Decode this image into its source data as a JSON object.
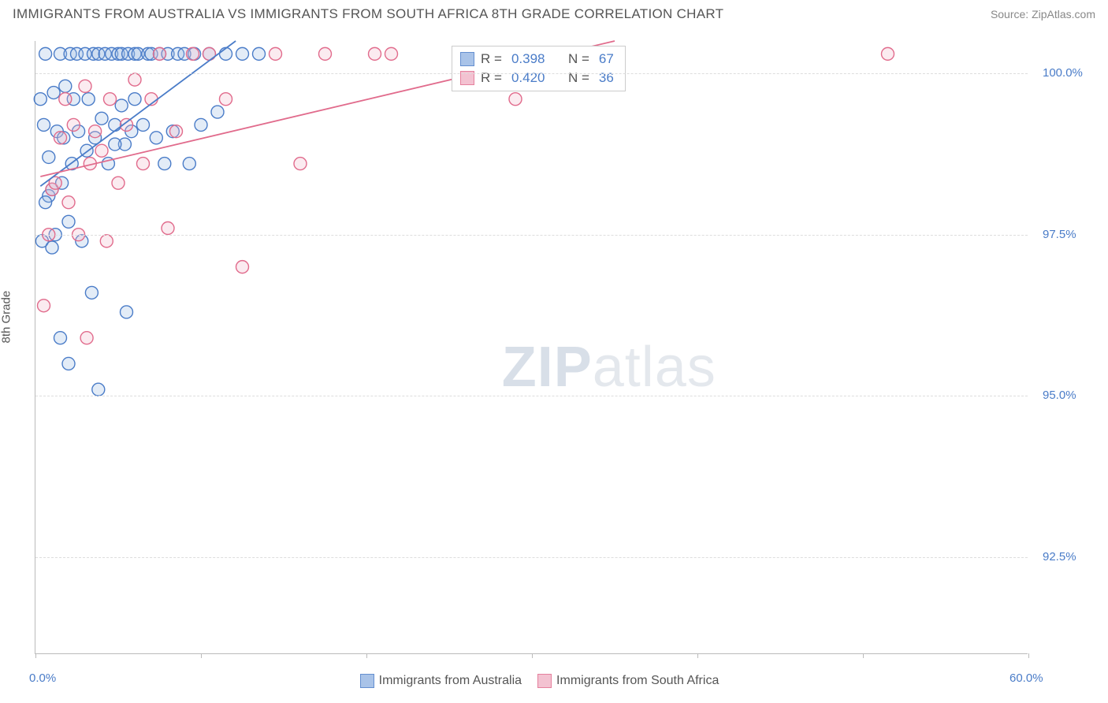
{
  "header": {
    "title": "IMMIGRANTS FROM AUSTRALIA VS IMMIGRANTS FROM SOUTH AFRICA 8TH GRADE CORRELATION CHART",
    "source_prefix": "Source: ",
    "source_name": "ZipAtlas.com"
  },
  "chart": {
    "type": "scatter",
    "y_axis_label": "8th Grade",
    "xlim": [
      0,
      60
    ],
    "ylim": [
      91,
      100.5
    ],
    "x_ticks": [
      0,
      10,
      20,
      30,
      40,
      50,
      60
    ],
    "x_tick_labels": {
      "0": "0.0%",
      "60": "60.0%"
    },
    "y_ticks": [
      92.5,
      95.0,
      97.5,
      100.0
    ],
    "y_tick_labels": [
      "92.5%",
      "95.0%",
      "97.5%",
      "100.0%"
    ],
    "background_color": "#ffffff",
    "grid_color": "#dddddd",
    "axis_color": "#bbbbbb",
    "tick_label_color": "#4a7cc8",
    "marker_radius": 8,
    "marker_fill_opacity": 0.28,
    "marker_stroke_width": 1.4,
    "line_width": 1.8,
    "watermark_text_bold": "ZIP",
    "watermark_text_light": "atlas",
    "series": [
      {
        "name": "Immigrants from Australia",
        "color_stroke": "#4a7cc8",
        "color_fill": "#9bb9e4",
        "R": "0.398",
        "N": "67",
        "trend": {
          "x1": 0.3,
          "y1": 98.25,
          "x2": 12.1,
          "y2": 100.5
        },
        "points": [
          [
            0.3,
            99.6
          ],
          [
            0.5,
            99.2
          ],
          [
            0.6,
            100.3
          ],
          [
            0.8,
            98.1
          ],
          [
            1.0,
            98.2
          ],
          [
            1.1,
            99.7
          ],
          [
            1.2,
            97.5
          ],
          [
            1.3,
            99.1
          ],
          [
            1.5,
            100.3
          ],
          [
            1.6,
            98.3
          ],
          [
            1.7,
            99.0
          ],
          [
            1.8,
            99.8
          ],
          [
            2.0,
            97.7
          ],
          [
            2.1,
            100.3
          ],
          [
            2.2,
            98.6
          ],
          [
            2.3,
            99.6
          ],
          [
            2.5,
            100.3
          ],
          [
            2.6,
            99.1
          ],
          [
            2.8,
            97.4
          ],
          [
            3.0,
            100.3
          ],
          [
            3.1,
            98.8
          ],
          [
            3.2,
            99.6
          ],
          [
            3.4,
            96.6
          ],
          [
            3.5,
            100.3
          ],
          [
            3.6,
            99.0
          ],
          [
            3.8,
            100.3
          ],
          [
            4.0,
            99.3
          ],
          [
            4.2,
            100.3
          ],
          [
            4.4,
            98.6
          ],
          [
            4.6,
            100.3
          ],
          [
            4.8,
            99.2
          ],
          [
            5.0,
            100.3
          ],
          [
            5.2,
            100.3
          ],
          [
            5.4,
            98.9
          ],
          [
            5.6,
            100.3
          ],
          [
            5.8,
            99.1
          ],
          [
            6.0,
            100.3
          ],
          [
            6.2,
            100.3
          ],
          [
            6.5,
            99.2
          ],
          [
            6.8,
            100.3
          ],
          [
            7.0,
            100.3
          ],
          [
            7.3,
            99.0
          ],
          [
            7.5,
            100.3
          ],
          [
            7.8,
            98.6
          ],
          [
            8.0,
            100.3
          ],
          [
            8.3,
            99.1
          ],
          [
            8.6,
            100.3
          ],
          [
            9.0,
            100.3
          ],
          [
            9.3,
            98.6
          ],
          [
            9.6,
            100.3
          ],
          [
            10.0,
            99.2
          ],
          [
            10.5,
            100.3
          ],
          [
            11.0,
            99.4
          ],
          [
            11.5,
            100.3
          ],
          [
            12.5,
            100.3
          ],
          [
            13.5,
            100.3
          ],
          [
            2.0,
            95.5
          ],
          [
            3.8,
            95.1
          ],
          [
            5.5,
            96.3
          ],
          [
            1.5,
            95.9
          ],
          [
            0.4,
            97.4
          ],
          [
            0.8,
            98.7
          ],
          [
            1.0,
            97.3
          ],
          [
            0.6,
            98.0
          ],
          [
            4.8,
            98.9
          ],
          [
            5.2,
            99.5
          ],
          [
            6.0,
            99.6
          ]
        ]
      },
      {
        "name": "Immigrants from South Africa",
        "color_stroke": "#e16b8c",
        "color_fill": "#f2b8c9",
        "R": "0.420",
        "N": "36",
        "trend": {
          "x1": 0.3,
          "y1": 98.4,
          "x2": 35.0,
          "y2": 100.5
        },
        "points": [
          [
            0.5,
            96.4
          ],
          [
            0.8,
            97.5
          ],
          [
            1.0,
            98.2
          ],
          [
            1.2,
            98.3
          ],
          [
            1.5,
            99.0
          ],
          [
            1.8,
            99.6
          ],
          [
            2.0,
            98.0
          ],
          [
            2.3,
            99.2
          ],
          [
            2.6,
            97.5
          ],
          [
            3.0,
            99.8
          ],
          [
            3.3,
            98.6
          ],
          [
            3.6,
            99.1
          ],
          [
            4.0,
            98.8
          ],
          [
            4.5,
            99.6
          ],
          [
            5.0,
            98.3
          ],
          [
            5.5,
            99.2
          ],
          [
            6.0,
            99.9
          ],
          [
            6.5,
            98.6
          ],
          [
            7.0,
            99.6
          ],
          [
            7.5,
            100.3
          ],
          [
            8.0,
            97.6
          ],
          [
            8.5,
            99.1
          ],
          [
            9.5,
            100.3
          ],
          [
            10.5,
            100.3
          ],
          [
            11.5,
            99.6
          ],
          [
            12.5,
            97.0
          ],
          [
            14.5,
            100.3
          ],
          [
            16.0,
            98.6
          ],
          [
            17.5,
            100.3
          ],
          [
            20.5,
            100.3
          ],
          [
            21.5,
            100.3
          ],
          [
            29.0,
            99.6
          ],
          [
            33.5,
            100.3
          ],
          [
            51.5,
            100.3
          ],
          [
            4.3,
            97.4
          ],
          [
            3.1,
            95.9
          ]
        ]
      }
    ]
  },
  "legend": {
    "r_label": "R =",
    "n_label": "N =",
    "bottom_items": [
      "Immigrants from Australia",
      "Immigrants from South Africa"
    ]
  }
}
